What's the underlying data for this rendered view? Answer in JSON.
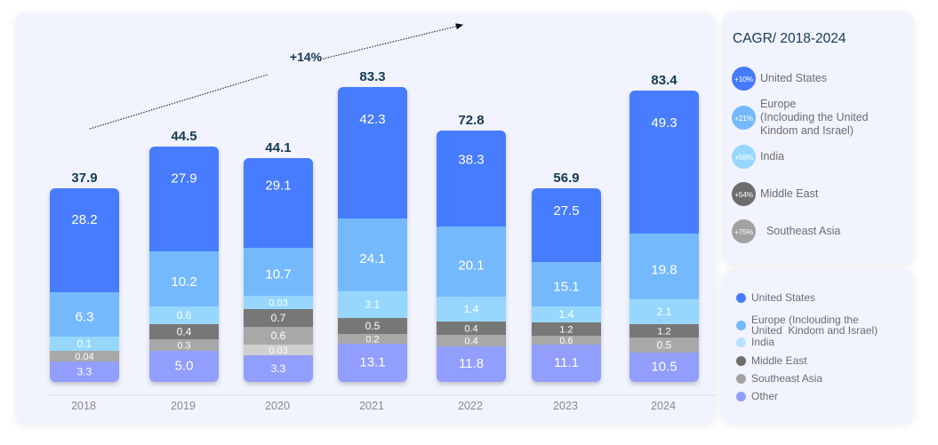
{
  "chart_data": {
    "type": "bar",
    "stacked": true,
    "title": "",
    "xlabel": "",
    "ylabel": "",
    "categories": [
      "2018",
      "2019",
      "2020",
      "2021",
      "2022",
      "2023",
      "2024"
    ],
    "totals": [
      37.9,
      44.5,
      44.1,
      83.3,
      72.8,
      56.9,
      83.4
    ],
    "series": [
      {
        "name": "United States",
        "color": "#477bfe",
        "values": [
          28.2,
          27.9,
          29.1,
          42.3,
          38.3,
          27.5,
          49.3
        ]
      },
      {
        "name": "Europe (Inclouding the United  Kindom and Israel)",
        "color": "#74b9fd",
        "values": [
          6.3,
          10.2,
          10.7,
          24.1,
          20.1,
          15.1,
          19.8
        ]
      },
      {
        "name": "India",
        "color": "#97d7fd",
        "values": [
          0.1,
          0.6,
          0.03,
          3.1,
          1.4,
          1.4,
          2.1
        ]
      },
      {
        "name": "Middle East",
        "color": "#777777",
        "values": [
          null,
          0.4,
          0.7,
          0.5,
          0.4,
          1.2,
          1.2
        ]
      },
      {
        "name": "Southeast Asia",
        "color": "#a9a8a8",
        "values": [
          0.04,
          0.3,
          0.6,
          0.2,
          0.4,
          0.6,
          0.5
        ]
      },
      {
        "name": "",
        "color": "#cfcfcf",
        "values": [
          null,
          null,
          0.03,
          null,
          null,
          null,
          null
        ]
      },
      {
        "name": "Other",
        "color": "#919efc",
        "values": [
          3.3,
          5.0,
          3.3,
          13.1,
          11.8,
          11.1,
          10.5
        ]
      }
    ],
    "annotation": {
      "label": "+14%",
      "type": "trend-arrow"
    },
    "grid": false,
    "legend_position": "right"
  },
  "cagr": {
    "title": "CAGR/ 2018-2024",
    "items": [
      {
        "badge": "+10%",
        "label": "United States",
        "color": "#477bfe"
      },
      {
        "badge": "+21%",
        "label": "Europe\n(Inclouding the United\nKindom and Israel)",
        "color": "#74b9fd"
      },
      {
        "badge": "+58%",
        "label": "India",
        "color": "#97d7fd"
      },
      {
        "badge": "+54%",
        "label": "Middle East",
        "color": "#6e6c6c"
      },
      {
        "badge": "+75%",
        "label": "  Southeast Asia",
        "color": "#a3a2a2"
      }
    ]
  },
  "legend": {
    "items": [
      {
        "label": "United States",
        "color": "#477bfe"
      },
      {
        "label": "Europe (Inclouding the\nUnited  Kindom and Israel)",
        "color": "#74b9fd"
      },
      {
        "label": "India",
        "color": "#b6e2fc"
      },
      {
        "label": "Middle East",
        "color": "#6e6c6c"
      },
      {
        "label": "Southeast Asia",
        "color": "#a3a2a2"
      },
      {
        "label": "Other",
        "color": "#919efc"
      }
    ]
  }
}
